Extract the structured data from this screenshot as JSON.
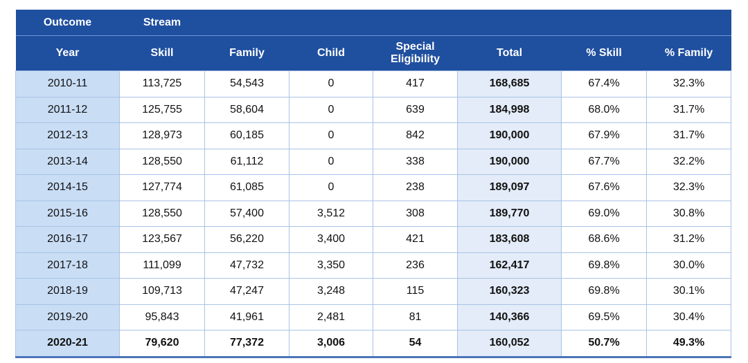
{
  "table": {
    "group_header": [
      "Outcome",
      "Stream"
    ],
    "columns": [
      "Year",
      "Skill",
      "Family",
      "Child",
      "Special Eligibility",
      "Total",
      "% Skill",
      "% Family"
    ],
    "rows": [
      [
        "2010-11",
        "113,725",
        "54,543",
        "0",
        "417",
        "168,685",
        "67.4%",
        "32.3%"
      ],
      [
        "2011-12",
        "125,755",
        "58,604",
        "0",
        "639",
        "184,998",
        "68.0%",
        "31.7%"
      ],
      [
        "2012-13",
        "128,973",
        "60,185",
        "0",
        "842",
        "190,000",
        "67.9%",
        "31.7%"
      ],
      [
        "2013-14",
        "128,550",
        "61,112",
        "0",
        "338",
        "190,000",
        "67.7%",
        "32.2%"
      ],
      [
        "2014-15",
        "127,774",
        "61,085",
        "0",
        "238",
        "189,097",
        "67.6%",
        "32.3%"
      ],
      [
        "2015-16",
        "128,550",
        "57,400",
        "3,512",
        "308",
        "189,770",
        "69.0%",
        "30.8%"
      ],
      [
        "2016-17",
        "123,567",
        "56,220",
        "3,400",
        "421",
        "183,608",
        "68.6%",
        "31.2%"
      ],
      [
        "2017-18",
        "111,099",
        "47,732",
        "3,350",
        "236",
        "162,417",
        "69.8%",
        "30.0%"
      ],
      [
        "2018-19",
        "109,713",
        "47,247",
        "3,248",
        "115",
        "160,323",
        "69.8%",
        "30.1%"
      ],
      [
        "2019-20",
        "95,843",
        "41,961",
        "2,481",
        "81",
        "140,366",
        "69.5%",
        "30.4%"
      ],
      [
        "2020-21",
        "79,620",
        "77,372",
        "3,006",
        "54",
        "160,052",
        "50.7%",
        "49.3%"
      ]
    ]
  }
}
